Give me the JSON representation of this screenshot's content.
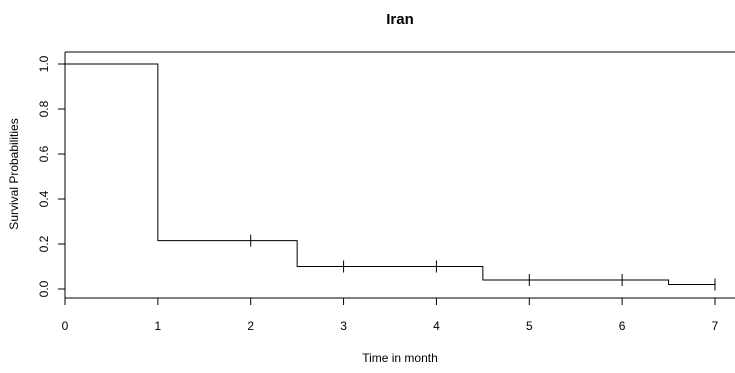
{
  "chart_data": {
    "type": "line",
    "subtype": "step (Kaplan-Meier survival curve)",
    "title": "Iran",
    "xlabel": "Time in month",
    "ylabel": "Survival Probabilities",
    "xlim": [
      0,
      7.2
    ],
    "ylim": [
      -0.02,
      1.04
    ],
    "grid": false,
    "legend": "none",
    "x_ticks": [
      0,
      1,
      2,
      3,
      4,
      5,
      6,
      7
    ],
    "x_tick_labels": [
      "0",
      "1",
      "2",
      "3",
      "4",
      "5",
      "6",
      "7"
    ],
    "y_ticks": [
      0.0,
      0.2,
      0.4,
      0.6,
      0.8,
      1.0
    ],
    "y_tick_labels": [
      "0.0",
      "0.2",
      "0.4",
      "0.6",
      "0.8",
      "1.0"
    ],
    "series": [
      {
        "steps": [
          {
            "x": 0,
            "y": 1.0
          },
          {
            "x": 1,
            "y": 0.215
          },
          {
            "x": 2.5,
            "y": 0.1
          },
          {
            "x": 4.5,
            "y": 0.04
          },
          {
            "x": 6.5,
            "y": 0.02
          },
          {
            "x": 7,
            "y": 0.02
          }
        ],
        "censored": [
          {
            "x": 2,
            "y": 0.215
          },
          {
            "x": 3,
            "y": 0.1
          },
          {
            "x": 4,
            "y": 0.1
          },
          {
            "x": 5,
            "y": 0.04
          },
          {
            "x": 6,
            "y": 0.04
          },
          {
            "x": 7,
            "y": 0.02
          }
        ]
      }
    ],
    "colors": {
      "line": "#000000",
      "background": "#ffffff"
    }
  }
}
